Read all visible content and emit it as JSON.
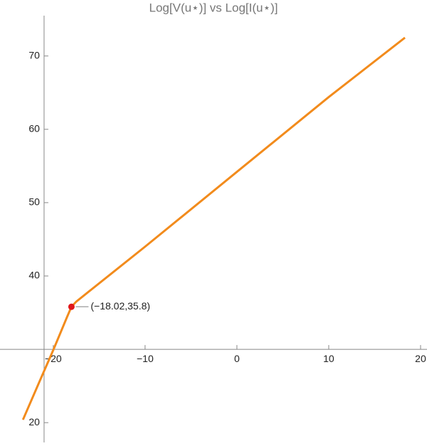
{
  "chart_data": {
    "type": "line",
    "title": "Log[V(u⋆)] vs Log[I(u⋆)]",
    "x": [
      -23.3,
      -21.5,
      -20,
      -19,
      -18.5,
      -18.02,
      -17.5,
      -16,
      -10,
      0,
      10,
      18.3
    ],
    "series": [
      {
        "color": "#f28b1c",
        "values": [
          20.4,
          25.6,
          29.9,
          32.9,
          34.4,
          35.8,
          36.5,
          38.0,
          44.0,
          54.2,
          64.4,
          72.5
        ]
      }
    ],
    "xlim": [
      -25.8,
      20.7
    ],
    "ylim": [
      17.3,
      75.5
    ],
    "xticks": [
      {
        "value": -20,
        "label": "−20"
      },
      {
        "value": -10,
        "label": "−10"
      },
      0,
      10,
      20
    ],
    "yticks": [
      20,
      40,
      50,
      60,
      70
    ],
    "axes_origin": [
      -21,
      30
    ],
    "annotations": [
      {
        "text": "(−18.02,35.8)",
        "x": -18.02,
        "y": 35.8,
        "color": "#e0161b"
      }
    ]
  }
}
